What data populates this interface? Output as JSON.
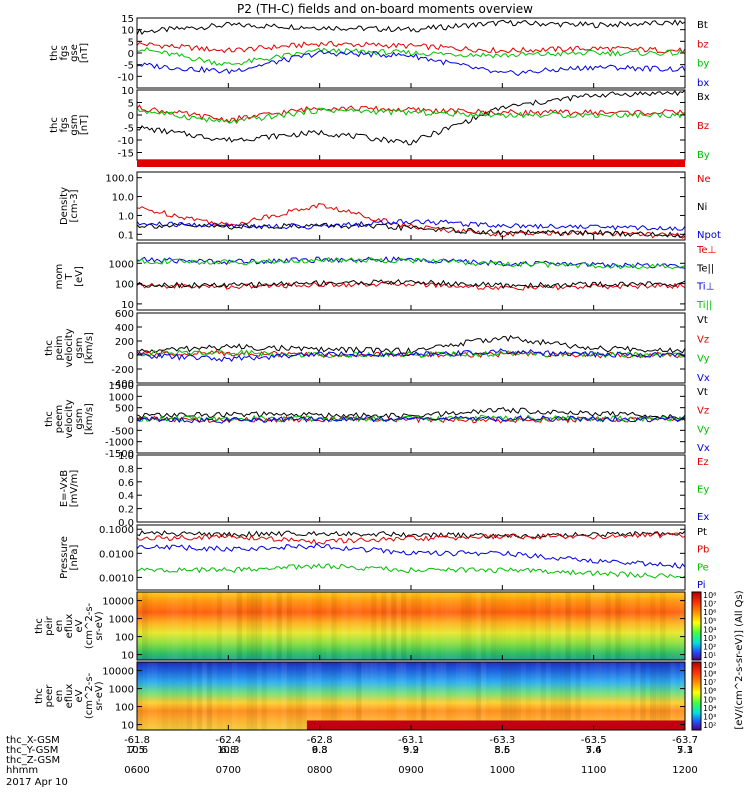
{
  "title": "P2 (TH-C) fields and on-board moments overview",
  "footer": {
    "rows": [
      {
        "label": "thc_X-GSM",
        "values": [
          "10.6",
          "10.3",
          "9.8",
          "9.2",
          "8.5",
          "7.6",
          "7.1"
        ]
      },
      {
        "label": "thc_Y-GSM",
        "values": [
          "7.5",
          "6.8",
          "6.3",
          "5.9",
          "5.6",
          "5.4",
          "5.3"
        ]
      },
      {
        "label": "thc_Z-GSM",
        "values": [
          "",
          "",
          "",
          "",
          "",
          "",
          ""
        ]
      },
      {
        "label": "hhmm",
        "values": [
          "0600",
          "0700",
          "0800",
          "0900",
          "1000",
          "1100",
          "1200"
        ]
      }
    ],
    "top_values": [
      "-61.8",
      "-62.4",
      "-62.8",
      "-63.1",
      "-63.3",
      "-63.5",
      "-63.7"
    ],
    "date": "2017 Apr 10"
  },
  "chart_data": [
    {
      "type": "line",
      "panel": "fgs_gse",
      "ylabel": [
        "thc",
        "fgs",
        "gse",
        "[nT]"
      ],
      "ylim": [
        -15,
        15
      ],
      "yticks": [
        "15",
        "10",
        "5",
        "0",
        "-5",
        "-10"
      ],
      "x": [
        "0600",
        "0700",
        "0800",
        "0900",
        "1000",
        "1100",
        "1200"
      ],
      "series": [
        {
          "name": "Bt",
          "color": "#000000",
          "values": [
            9,
            12,
            11,
            10,
            13,
            12,
            13
          ]
        },
        {
          "name": "bz",
          "color": "#e00000",
          "values": [
            4,
            1,
            4,
            3,
            1,
            2,
            1
          ]
        },
        {
          "name": "by",
          "color": "#00c000",
          "values": [
            2,
            -5,
            1,
            0,
            -1,
            0,
            0
          ]
        },
        {
          "name": "bx",
          "color": "#0000e0",
          "values": [
            -5,
            -8,
            0,
            -1,
            -9,
            -6,
            -7
          ]
        }
      ]
    },
    {
      "type": "line",
      "panel": "fgs_gsm",
      "ylabel": [
        "thc",
        "fgs",
        "gsm",
        "[nT]"
      ],
      "ylim": [
        -18,
        10
      ],
      "yticks": [
        "10",
        "5",
        "0",
        "-5",
        "-10",
        "-15"
      ],
      "x": [
        "0600",
        "0700",
        "0800",
        "0900",
        "1000",
        "1100",
        "1200"
      ],
      "series": [
        {
          "name": "Bx",
          "color": "#000000",
          "values": [
            -5,
            -10,
            -7,
            -11,
            3,
            8,
            9
          ]
        },
        {
          "name": "Bz",
          "color": "#e00000",
          "values": [
            3,
            -2,
            3,
            2,
            1,
            1,
            1
          ]
        },
        {
          "name": "By",
          "color": "#00c000",
          "values": [
            2,
            -3,
            2,
            1,
            0,
            0,
            0
          ]
        }
      ]
    },
    {
      "type": "line",
      "panel": "density",
      "ylabel": [
        "Density",
        "[cm-3]"
      ],
      "yscale": "log",
      "ylim": [
        0.05,
        200
      ],
      "yticks": [
        "100.0",
        "10.0",
        "1.0",
        "0.1"
      ],
      "x": [
        "0600",
        "0700",
        "0800",
        "0900",
        "1000",
        "1100",
        "1200"
      ],
      "series": [
        {
          "name": "Ne",
          "color": "#e00000",
          "values": [
            2.5,
            0.3,
            3.5,
            0.25,
            0.1,
            0.12,
            0.08
          ]
        },
        {
          "name": "Ni",
          "color": "#000000",
          "values": [
            0.3,
            0.25,
            0.3,
            0.22,
            0.12,
            0.12,
            0.09
          ]
        },
        {
          "name": "Npot",
          "color": "#0000e0",
          "values": [
            0.35,
            0.3,
            0.25,
            0.5,
            0.3,
            0.25,
            0.2
          ]
        }
      ]
    },
    {
      "type": "line",
      "panel": "temperature",
      "ylabel": [
        "mom",
        "T",
        "[eV]"
      ],
      "yscale": "log",
      "ylim": [
        5,
        10000
      ],
      "yticks": [
        "1000",
        "100",
        "10"
      ],
      "x": [
        "0600",
        "0700",
        "0800",
        "0900",
        "1000",
        "1100",
        "1200"
      ],
      "series": [
        {
          "name": "Te⊥",
          "color": "#e00000",
          "values": [
            80,
            70,
            90,
            100,
            60,
            70,
            80
          ]
        },
        {
          "name": "Te||",
          "color": "#000000",
          "values": [
            90,
            80,
            110,
            120,
            80,
            90,
            100
          ]
        },
        {
          "name": "Ti⊥",
          "color": "#0000e0",
          "values": [
            1500,
            1200,
            1500,
            1500,
            1000,
            900,
            700
          ]
        },
        {
          "name": "Ti||",
          "color": "#00c000",
          "values": [
            1300,
            1100,
            1400,
            1400,
            900,
            800,
            600
          ]
        }
      ]
    },
    {
      "type": "line",
      "panel": "peim_velocity",
      "ylabel": [
        "thc",
        "peim",
        "velocity",
        "gsm",
        "[km/s]"
      ],
      "ylim": [
        -400,
        600
      ],
      "yticks": [
        "600",
        "400",
        "200",
        "0",
        "-200",
        "-400"
      ],
      "x": [
        "0600",
        "0700",
        "0800",
        "0900",
        "1000",
        "1100",
        "1200"
      ],
      "series": [
        {
          "name": "Vt",
          "color": "#000000",
          "values": [
            50,
            120,
            80,
            60,
            250,
            90,
            70
          ]
        },
        {
          "name": "Vz",
          "color": "#e00000",
          "values": [
            10,
            30,
            0,
            5,
            10,
            0,
            0
          ]
        },
        {
          "name": "Vy",
          "color": "#00c000",
          "values": [
            20,
            40,
            0,
            10,
            20,
            10,
            0
          ]
        },
        {
          "name": "Vx",
          "color": "#0000e0",
          "values": [
            0,
            -60,
            20,
            0,
            50,
            10,
            0
          ]
        }
      ]
    },
    {
      "type": "line",
      "panel": "peem_velocity",
      "ylabel": [
        "thc",
        "peem",
        "velocity",
        "gsm",
        "[km/s]"
      ],
      "ylim": [
        -1500,
        1500
      ],
      "yticks": [
        "1500",
        "1000",
        "500",
        "0",
        "-500",
        "-1000",
        "-1500"
      ],
      "x": [
        "0600",
        "0700",
        "0800",
        "0900",
        "1000",
        "1100",
        "1200"
      ],
      "series": [
        {
          "name": "Vt",
          "color": "#000000",
          "values": [
            150,
            200,
            180,
            120,
            400,
            250,
            100
          ]
        },
        {
          "name": "Vz",
          "color": "#e00000",
          "values": [
            0,
            -50,
            0,
            -30,
            -60,
            -20,
            -10
          ]
        },
        {
          "name": "Vy",
          "color": "#00c000",
          "values": [
            0,
            40,
            0,
            20,
            50,
            20,
            10
          ]
        },
        {
          "name": "Vx",
          "color": "#0000e0",
          "values": [
            0,
            -80,
            10,
            0,
            30,
            0,
            -20
          ]
        }
      ]
    },
    {
      "type": "line",
      "panel": "e_vxb",
      "ylabel": [
        "E=-VxB",
        "[mV/m]"
      ],
      "ylim": [
        0,
        1
      ],
      "yticks": [
        "1.0",
        "0.8",
        "0.6",
        "0.4",
        "0.2",
        "0.0"
      ],
      "x": [],
      "series": [
        {
          "name": "Ez",
          "color": "#e00000",
          "values": []
        },
        {
          "name": "Ey",
          "color": "#00c000",
          "values": []
        },
        {
          "name": "Ex",
          "color": "#0000e0",
          "values": []
        }
      ]
    },
    {
      "type": "line",
      "panel": "pressure",
      "ylabel": [
        "Pressure",
        "[nPa]"
      ],
      "yscale": "log",
      "ylim": [
        0.0003,
        0.15
      ],
      "yticks": [
        "0.1000",
        "0.0100",
        "0.0010"
      ],
      "x": [
        "0600",
        "0700",
        "0800",
        "0900",
        "1000",
        "1100",
        "1200"
      ],
      "series": [
        {
          "name": "Pt",
          "color": "#000000",
          "values": [
            0.07,
            0.06,
            0.07,
            0.06,
            0.05,
            0.06,
            0.07
          ]
        },
        {
          "name": "Pb",
          "color": "#e00000",
          "values": [
            0.04,
            0.05,
            0.03,
            0.04,
            0.05,
            0.05,
            0.06
          ]
        },
        {
          "name": "Pe",
          "color": "#00c000",
          "values": [
            0.002,
            0.002,
            0.003,
            0.002,
            0.002,
            0.0015,
            0.001
          ]
        },
        {
          "name": "Pi",
          "color": "#0000e0",
          "values": [
            0.02,
            0.015,
            0.02,
            0.01,
            0.01,
            0.005,
            0.003
          ]
        }
      ]
    },
    {
      "type": "heatmap",
      "panel": "peir_eflux",
      "ylabel": [
        "thc",
        "peir",
        "en",
        "eflux",
        "eV",
        "(cm^2-s-",
        "sr-eV)"
      ],
      "yscale": "log",
      "ylim": [
        5,
        30000
      ],
      "yticks": [
        "10000",
        "1000",
        "100",
        "10"
      ],
      "x": [
        "0600",
        "0700",
        "0800",
        "0900",
        "1000",
        "1100",
        "1200"
      ],
      "colorbar": {
        "label": "[eV/(cm^2-s-sr-eV)] (All Qs)",
        "ticks": [
          "10⁸",
          "10⁷",
          "10⁶",
          "10⁵",
          "10⁴",
          "10³",
          "10²",
          "10¹"
        ]
      }
    },
    {
      "type": "heatmap",
      "panel": "peer_eflux",
      "ylabel": [
        "thc",
        "peer",
        "en",
        "eflux",
        "eV",
        "(cm^2-s-",
        "sr-eV)"
      ],
      "yscale": "log",
      "ylim": [
        5,
        30000
      ],
      "yticks": [
        "10000",
        "1000",
        "100",
        "10"
      ],
      "x": [
        "0600",
        "0700",
        "0800",
        "0900",
        "1000",
        "1100",
        "1200"
      ],
      "colorbar": {
        "label": "[eV/(cm^2-s-sr-eV)] (All Qs)",
        "ticks": [
          "10⁹",
          "10⁸",
          "10⁷",
          "10⁶",
          "10⁵",
          "10⁴",
          "10³",
          "10²"
        ]
      }
    }
  ]
}
